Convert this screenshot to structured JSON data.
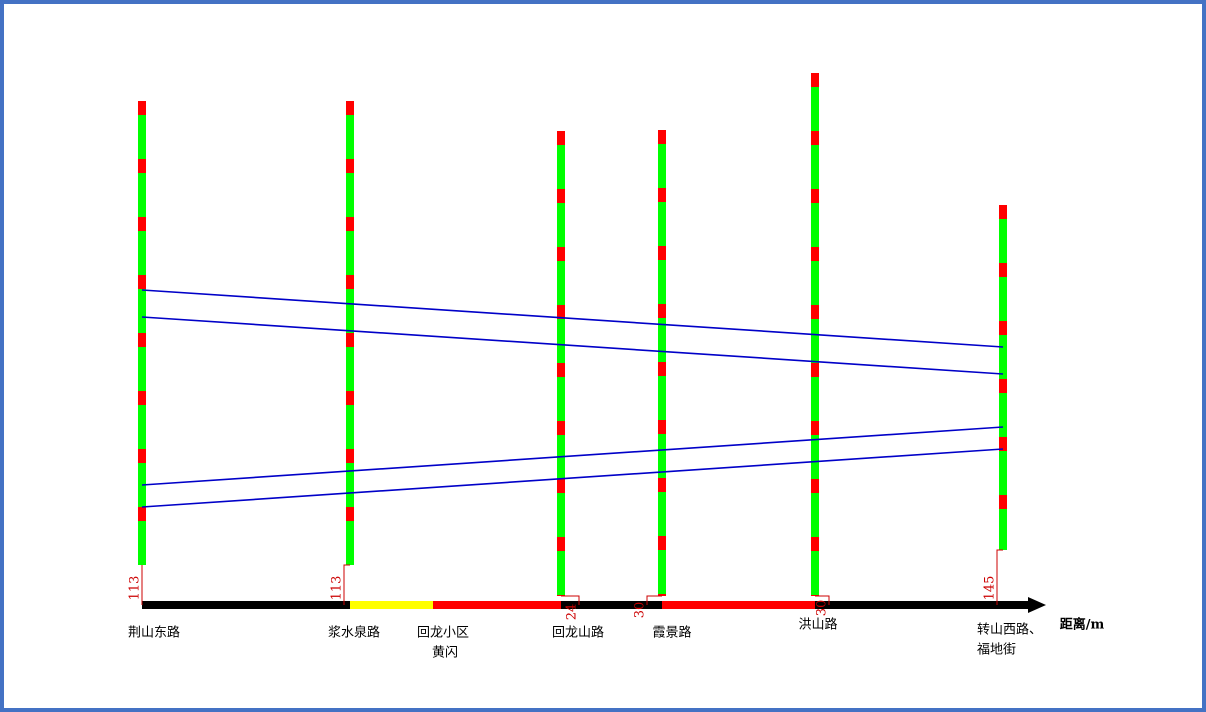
{
  "axis_label": "距离/m",
  "intersections": [
    {
      "name": [
        "荆山东路"
      ],
      "offset": 113
    },
    {
      "name": [
        "浆水泉路"
      ],
      "offset": 113
    },
    {
      "name": [
        "回龙小区",
        "黄闪"
      ]
    },
    {
      "name": [
        "回龙山路"
      ],
      "offset": 24
    },
    {
      "name": [
        "霞景路"
      ],
      "offset": 30
    },
    {
      "name": [
        "洪山路"
      ],
      "offset": 30
    },
    {
      "name": [
        "转山西路、",
        "福地街"
      ],
      "offset": 145
    }
  ]
}
